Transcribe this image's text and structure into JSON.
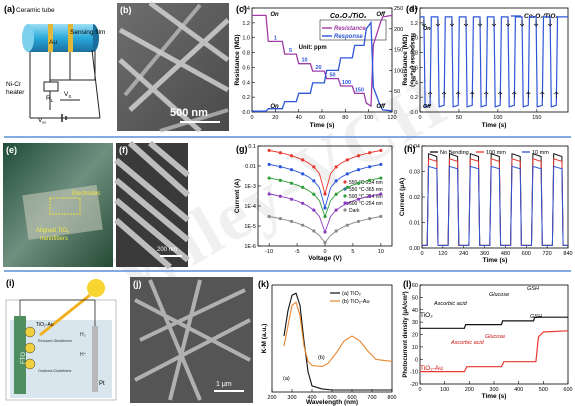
{
  "watermark": "Wiley-VCH",
  "colors": {
    "separator": "#5b8fd6",
    "red": "#e8382f",
    "blue": "#2d56d8",
    "purple": "#a03ca8",
    "black": "#111111",
    "orange": "#e8862e"
  },
  "panels": {
    "a": {
      "label": "(a)",
      "ceramic": "Ceramic tube",
      "au": "Au",
      "film": "Sensing film",
      "nicr1": "Ni-Cr",
      "nicr2": "heater",
      "vs": "V",
      "vs_sub": "S",
      "rl": "R",
      "rl_sub": "L",
      "vh": "V",
      "vh_sub": "H"
    },
    "b": {
      "label": "(b)",
      "scale": "500 nm"
    },
    "c": {
      "label": "(c)"
    },
    "d": {
      "label": "(d)"
    },
    "e": {
      "label": "(e)",
      "electrodes": "Electrodes",
      "aligned1": "Aligned TiO",
      "aligned_sub": "2",
      "aligned2": "nanofibers"
    },
    "f": {
      "label": "(f)",
      "scale": "200 nm"
    },
    "g": {
      "label": "(g)"
    },
    "h": {
      "label": "(h)"
    },
    "i": {
      "label": "(i)",
      "fto": "FTO",
      "tio2au": "TiO₂-Au",
      "pt": "Pt",
      "gsh_red": "Reduced-Glutathione",
      "gsh_ox": "Oxidized-Glutathione",
      "h2": "H₂",
      "hplus": "H⁺"
    },
    "j": {
      "label": "(j)",
      "scale": "1 μm"
    },
    "k": {
      "label": "(k)",
      "ann_b": "(b)",
      "ann_a": "(a)"
    },
    "l": {
      "label": "(l)",
      "aa1": "Ascorbic acid",
      "glu1": "Glucose",
      "gsh1": "GSH",
      "aa2": "Ascorbic acid",
      "glu2": "Glucose",
      "gsh2": "GSH",
      "tio2": "TiO₂",
      "tio2au": "TiO₂-Au"
    }
  },
  "chart_data": [
    {
      "panel": "c",
      "type": "line",
      "title": "Co₃O₄/TiO₂",
      "xlabel": "Time (s)",
      "ylabel": "Resistance (MΩ)",
      "y2label": "Response (Rₐ/R₄)",
      "xlim": [
        0,
        120
      ],
      "ylim": [
        0.0,
        1.4
      ],
      "y2lim": [
        0,
        250
      ],
      "xticks": [
        0,
        20,
        40,
        60,
        80,
        100,
        120
      ],
      "yticks": [
        0.0,
        0.2,
        0.4,
        0.6,
        0.8,
        1.0,
        1.2,
        1.4
      ],
      "y2ticks": [
        0,
        50,
        100,
        150,
        200,
        250
      ],
      "legend": [
        "Resistance",
        "Response"
      ],
      "unit_note": "Unit: ppm",
      "step_labels": [
        "1",
        "5",
        "10",
        "20",
        "50",
        "100",
        "150"
      ],
      "on_label": "On",
      "off_label": "Off",
      "series": [
        {
          "name": "Resistance",
          "x": [
            0,
            12,
            14,
            26,
            28,
            38,
            40,
            50,
            52,
            62,
            64,
            74,
            76,
            86,
            88,
            96,
            98,
            102,
            104,
            110,
            112,
            120
          ],
          "y": [
            1.3,
            1.3,
            0.95,
            0.95,
            0.78,
            0.78,
            0.65,
            0.65,
            0.55,
            0.55,
            0.45,
            0.45,
            0.35,
            0.35,
            0.25,
            0.25,
            0.12,
            0.08,
            0.9,
            1.2,
            1.28,
            1.3
          ]
        },
        {
          "name": "Response",
          "x": [
            0,
            12,
            14,
            26,
            28,
            38,
            40,
            50,
            52,
            62,
            64,
            74,
            76,
            86,
            88,
            96,
            98,
            102,
            104,
            110,
            112,
            120
          ],
          "y": [
            2,
            2,
            8,
            8,
            25,
            25,
            45,
            45,
            70,
            70,
            100,
            100,
            130,
            130,
            160,
            160,
            200,
            215,
            60,
            15,
            5,
            3
          ]
        }
      ]
    },
    {
      "panel": "d",
      "type": "line",
      "title": "Co₃O₄/TiO₂",
      "xlabel": "Time (s)",
      "ylabel": "Resistance (MΩ)",
      "xlim": [
        0,
        190
      ],
      "ylim": [
        0.0,
        1.4
      ],
      "xticks": [
        0,
        50,
        100,
        150
      ],
      "yticks": [
        0.0,
        0.2,
        0.4,
        0.6,
        0.8,
        1.0,
        1.2,
        1.4
      ],
      "on_label": "On",
      "off_label": "Off",
      "cycles": 10,
      "high": 1.28,
      "low": 0.07
    },
    {
      "panel": "g",
      "type": "line",
      "yscale": "log",
      "xlabel": "Voltage (V)",
      "ylabel": "Current (A)",
      "xlim": [
        -12,
        12
      ],
      "ylim": [
        1e-06,
        0.1
      ],
      "xticks": [
        -10,
        -5,
        0,
        5,
        10
      ],
      "ytick_labels": [
        "1E-6",
        "1E-5",
        "1E-4",
        "1E-3",
        "0.01",
        "0.1"
      ],
      "series": [
        {
          "name": "550 °C-254 nm",
          "vmax": 0.06,
          "vmin": 0.0004
        },
        {
          "name": "550 °C-365 nm",
          "vmax": 0.012,
          "vmin": 8e-05
        },
        {
          "name": "500 °C-254 nm",
          "vmax": 0.0025,
          "vmin": 3e-05
        },
        {
          "name": "600 °C-254 nm",
          "vmax": 0.0004,
          "vmin": 5e-06
        },
        {
          "name": "Dark",
          "vmax": 3e-05,
          "vmin": 1.5e-06
        }
      ]
    },
    {
      "panel": "h",
      "type": "line",
      "xlabel": "Time (s)",
      "ylabel": "Current (μA)",
      "xlim": [
        0,
        840
      ],
      "ylim": [
        0.0,
        0.04
      ],
      "xticks": [
        0,
        120,
        240,
        360,
        480,
        600,
        720,
        840
      ],
      "ytick_labels": [
        "0.00",
        "0.01",
        "0.02",
        "0.03",
        "0.04"
      ],
      "series": [
        {
          "name": "No Bending",
          "peak": 0.037
        },
        {
          "name": "100 mm",
          "peak": 0.035
        },
        {
          "name": "10 mm",
          "peak": 0.032
        }
      ],
      "cycles": 7,
      "period": 120
    },
    {
      "panel": "k",
      "type": "line",
      "xlabel": "Wavelength (nm)",
      "ylabel": "K-M (a.u.)",
      "xlim": [
        200,
        800
      ],
      "xticks": [
        200,
        300,
        400,
        500,
        600,
        700,
        800
      ],
      "series": [
        {
          "name": "(a) TiO₂",
          "x": [
            260,
            280,
            300,
            320,
            340,
            360,
            380,
            400,
            450,
            500,
            600,
            700,
            800
          ],
          "y": [
            0.55,
            0.8,
            0.95,
            0.97,
            0.85,
            0.5,
            0.2,
            0.06,
            0.03,
            0.02,
            0.02,
            0.02,
            0.02
          ]
        },
        {
          "name": "(b) TiO₂-Au",
          "x": [
            260,
            280,
            300,
            320,
            340,
            360,
            380,
            400,
            450,
            480,
            520,
            560,
            600,
            640,
            680,
            720,
            800
          ],
          "y": [
            0.45,
            0.65,
            0.85,
            0.88,
            0.75,
            0.45,
            0.3,
            0.26,
            0.25,
            0.28,
            0.38,
            0.5,
            0.55,
            0.5,
            0.4,
            0.32,
            0.3
          ]
        }
      ]
    },
    {
      "panel": "l",
      "type": "line",
      "xlabel": "Time (s)",
      "ylabel": "Photocurrent density (μA/cm²)",
      "xlim": [
        0,
        600
      ],
      "ylim": [
        -20,
        60
      ],
      "xticks": [
        0,
        100,
        200,
        300,
        400,
        500,
        600
      ],
      "yticks": [
        -20,
        -10,
        0,
        10,
        20,
        30,
        40,
        50,
        60
      ],
      "series": [
        {
          "name": "TiO₂",
          "x": [
            0,
            180,
            185,
            330,
            335,
            460,
            465,
            600
          ],
          "y": [
            25,
            25,
            28,
            28,
            31,
            31,
            34,
            34
          ]
        },
        {
          "name": "TiO₂-Au",
          "x": [
            0,
            180,
            190,
            330,
            340,
            470,
            480,
            500,
            600
          ],
          "y": [
            -10,
            -10,
            -6,
            -6,
            -2,
            -2,
            18,
            22,
            23
          ]
        }
      ]
    }
  ]
}
